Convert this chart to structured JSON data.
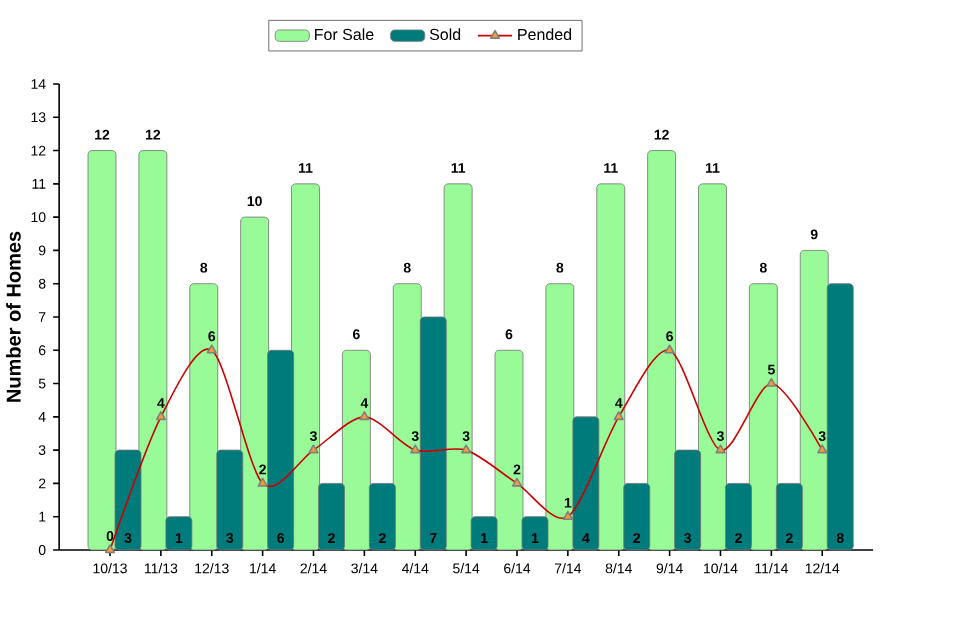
{
  "chart_data": {
    "type": "bar",
    "ylabel": "Number of Homes",
    "categories": [
      "10/13",
      "11/13",
      "12/13",
      "1/14",
      "2/14",
      "3/14",
      "4/14",
      "5/14",
      "6/14",
      "7/14",
      "8/14",
      "9/14",
      "10/14",
      "11/14",
      "12/14"
    ],
    "series": [
      {
        "name": "For Sale",
        "color": "#98fb98",
        "values": [
          12,
          12,
          8,
          10,
          11,
          6,
          8,
          11,
          6,
          8,
          11,
          12,
          11,
          8,
          9
        ]
      },
      {
        "name": "Sold",
        "color": "#007b7b",
        "values": [
          3,
          1,
          3,
          6,
          2,
          2,
          7,
          1,
          1,
          4,
          2,
          3,
          2,
          2,
          8
        ]
      },
      {
        "name": "Pended",
        "type": "line",
        "color": "#cc0000",
        "marker": "triangle",
        "values": [
          0,
          4,
          6,
          2,
          3,
          4,
          3,
          3,
          2,
          1,
          4,
          6,
          3,
          5,
          3
        ]
      }
    ],
    "ylim": [
      0,
      14
    ],
    "yticks": [
      0,
      1,
      2,
      3,
      4,
      5,
      6,
      7,
      8,
      9,
      10,
      11,
      12,
      13,
      14
    ],
    "data_labels": true,
    "legend": "top",
    "grid": false
  }
}
